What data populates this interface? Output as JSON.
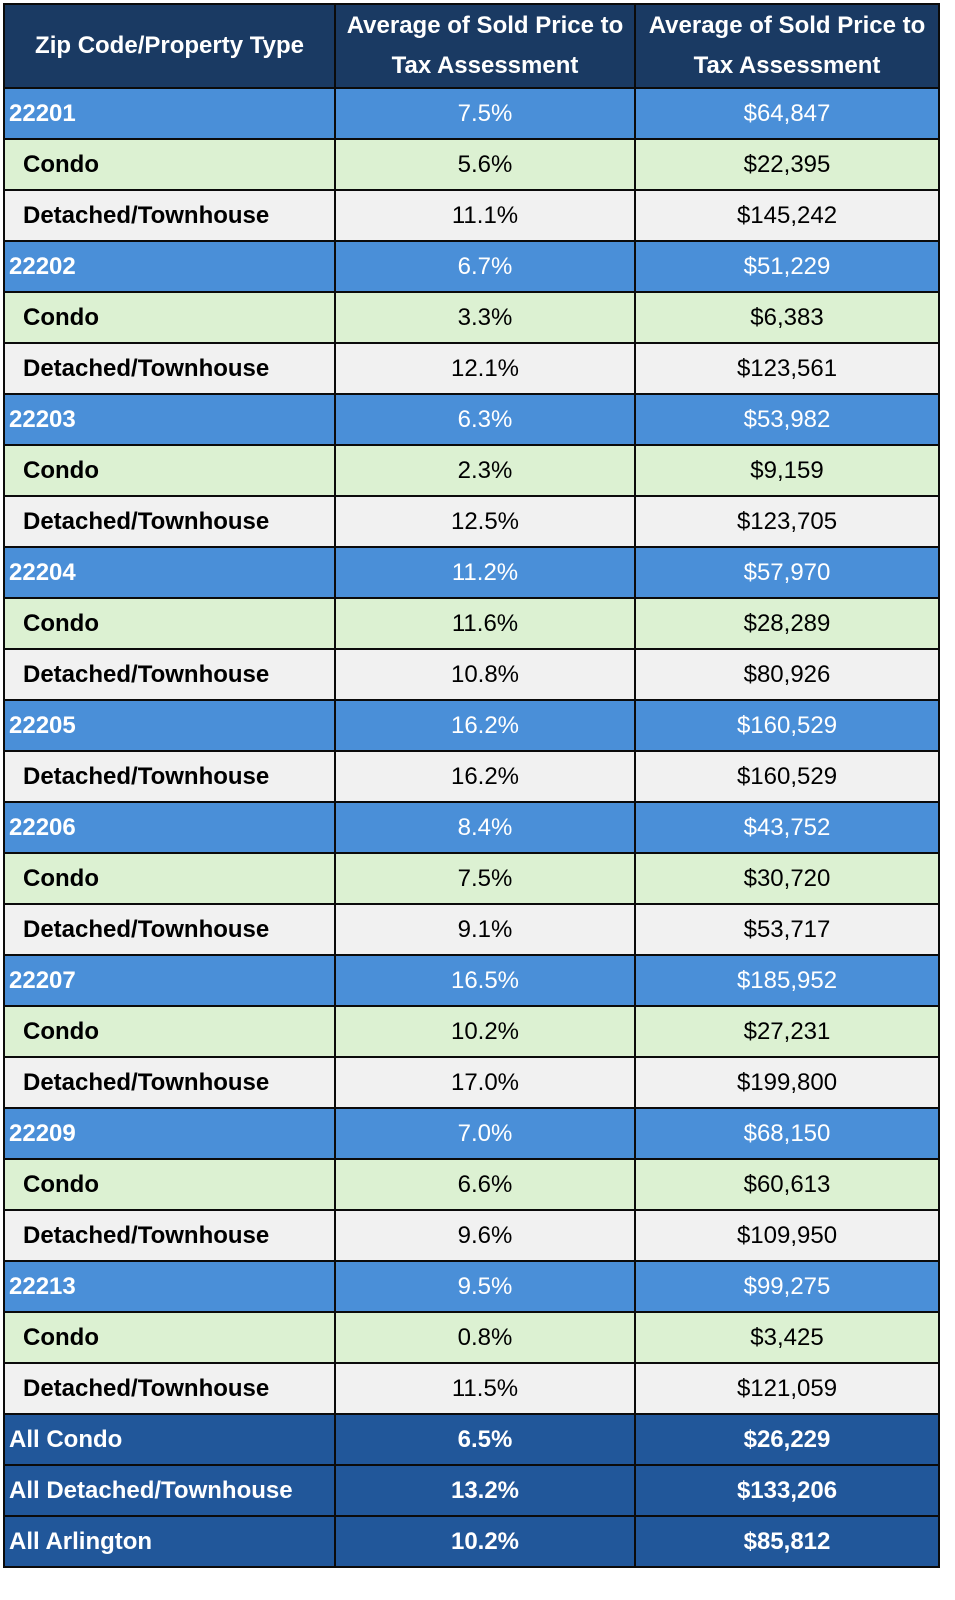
{
  "headers": [
    "Zip Code/Property Type",
    "Average of Sold Price to Tax Assessment",
    "Average of Sold Price to Tax Assessment"
  ],
  "rows": [
    {
      "type": "zip",
      "label": "22201",
      "pct": "7.5%",
      "amount": "$64,847"
    },
    {
      "type": "condo",
      "label": "Condo",
      "pct": "5.6%",
      "amount": "$22,395"
    },
    {
      "type": "detached",
      "label": "Detached/Townhouse",
      "pct": "11.1%",
      "amount": "$145,242"
    },
    {
      "type": "zip",
      "label": "22202",
      "pct": "6.7%",
      "amount": "$51,229"
    },
    {
      "type": "condo",
      "label": "Condo",
      "pct": "3.3%",
      "amount": "$6,383"
    },
    {
      "type": "detached",
      "label": "Detached/Townhouse",
      "pct": "12.1%",
      "amount": "$123,561"
    },
    {
      "type": "zip",
      "label": "22203",
      "pct": "6.3%",
      "amount": "$53,982"
    },
    {
      "type": "condo",
      "label": "Condo",
      "pct": "2.3%",
      "amount": "$9,159"
    },
    {
      "type": "detached",
      "label": "Detached/Townhouse",
      "pct": "12.5%",
      "amount": "$123,705"
    },
    {
      "type": "zip",
      "label": "22204",
      "pct": "11.2%",
      "amount": "$57,970"
    },
    {
      "type": "condo",
      "label": "Condo",
      "pct": "11.6%",
      "amount": "$28,289"
    },
    {
      "type": "detached",
      "label": "Detached/Townhouse",
      "pct": "10.8%",
      "amount": "$80,926"
    },
    {
      "type": "zip",
      "label": "22205",
      "pct": "16.2%",
      "amount": "$160,529"
    },
    {
      "type": "detached",
      "label": "Detached/Townhouse",
      "pct": "16.2%",
      "amount": "$160,529"
    },
    {
      "type": "zip",
      "label": "22206",
      "pct": "8.4%",
      "amount": "$43,752"
    },
    {
      "type": "condo",
      "label": "Condo",
      "pct": "7.5%",
      "amount": "$30,720"
    },
    {
      "type": "detached",
      "label": "Detached/Townhouse",
      "pct": "9.1%",
      "amount": "$53,717"
    },
    {
      "type": "zip",
      "label": "22207",
      "pct": "16.5%",
      "amount": "$185,952"
    },
    {
      "type": "condo",
      "label": "Condo",
      "pct": "10.2%",
      "amount": "$27,231"
    },
    {
      "type": "detached",
      "label": "Detached/Townhouse",
      "pct": "17.0%",
      "amount": "$199,800"
    },
    {
      "type": "zip",
      "label": "22209",
      "pct": "7.0%",
      "amount": "$68,150"
    },
    {
      "type": "condo",
      "label": "Condo",
      "pct": "6.6%",
      "amount": "$60,613"
    },
    {
      "type": "detached",
      "label": "Detached/Townhouse",
      "pct": "9.6%",
      "amount": "$109,950"
    },
    {
      "type": "zip",
      "label": "22213",
      "pct": "9.5%",
      "amount": "$99,275"
    },
    {
      "type": "condo",
      "label": "Condo",
      "pct": "0.8%",
      "amount": "$3,425"
    },
    {
      "type": "detached",
      "label": "Detached/Townhouse",
      "pct": "11.5%",
      "amount": "$121,059"
    },
    {
      "type": "total",
      "label": "All Condo",
      "pct": "6.5%",
      "amount": "$26,229"
    },
    {
      "type": "total",
      "label": "All Detached/Townhouse",
      "pct": "13.2%",
      "amount": "$133,206"
    },
    {
      "type": "total",
      "label": "All Arlington",
      "pct": "10.2%",
      "amount": "$85,812"
    }
  ],
  "colors": {
    "header_bg": "#1a3a63",
    "zip_row_bg": "#4a8fd8",
    "condo_row_bg": "#dcf1d2",
    "detached_row_bg": "#f1f1f1",
    "total_row_bg": "#21579a",
    "border": "#0b0b0b"
  }
}
